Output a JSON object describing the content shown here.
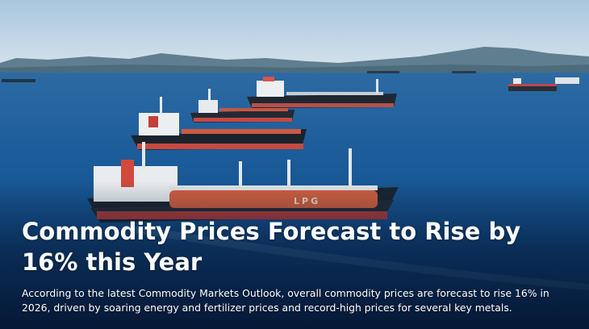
{
  "headline": "Commodity Prices Forecast to Rise by 16% this Year",
  "summary": "According to the latest Commodity Markets Outlook, overall commodity prices are forecast to rise 16% in 2026, driven by soaring energy and fertilizer prices and record-high prices for several key metals.",
  "ship_marking": "LPG",
  "colors": {
    "sky": "#c9dceb",
    "sea": "#0f4f8e",
    "hull_dark": "#1d2833",
    "hull_red": "#c9463c",
    "tank_orange": "#d2603f",
    "text": "#ffffff"
  }
}
